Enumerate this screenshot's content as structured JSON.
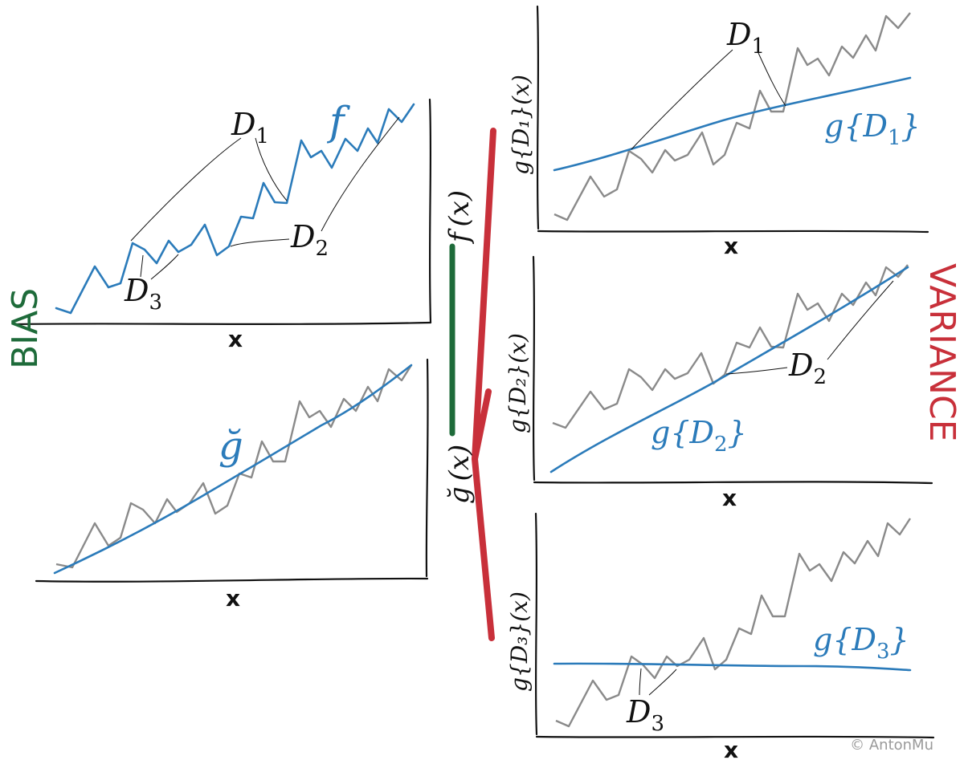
{
  "labels": {
    "bias": "BIAS",
    "variance": "VARIANCE",
    "f": "f",
    "g_breve": "ğ",
    "f_x": "f (x)",
    "g_breve_x": "ğ (x)",
    "D1": "D",
    "D1_sub": "1",
    "D2": "D",
    "D2_sub": "2",
    "D3": "D",
    "D3_sub": "3",
    "g_D1": "g{D",
    "g_D1_sub": "1",
    "g_D2": "g{D",
    "g_D2_sub": "2",
    "g_D3": "g{D",
    "g_D3_sub": "3",
    "close_brace": "}",
    "y_D1": "g{D₁}(x)",
    "y_D2": "g{D₂}(x)",
    "y_D3": "g{D₃}(x)",
    "x_axis": "x",
    "copyright": "© AntonMu"
  },
  "colors": {
    "bias": "#1e6b3a",
    "variance": "#c8303a",
    "model": "#2b7bba",
    "data": "#8a8a8a",
    "copyright": "#9a9a9a"
  }
}
